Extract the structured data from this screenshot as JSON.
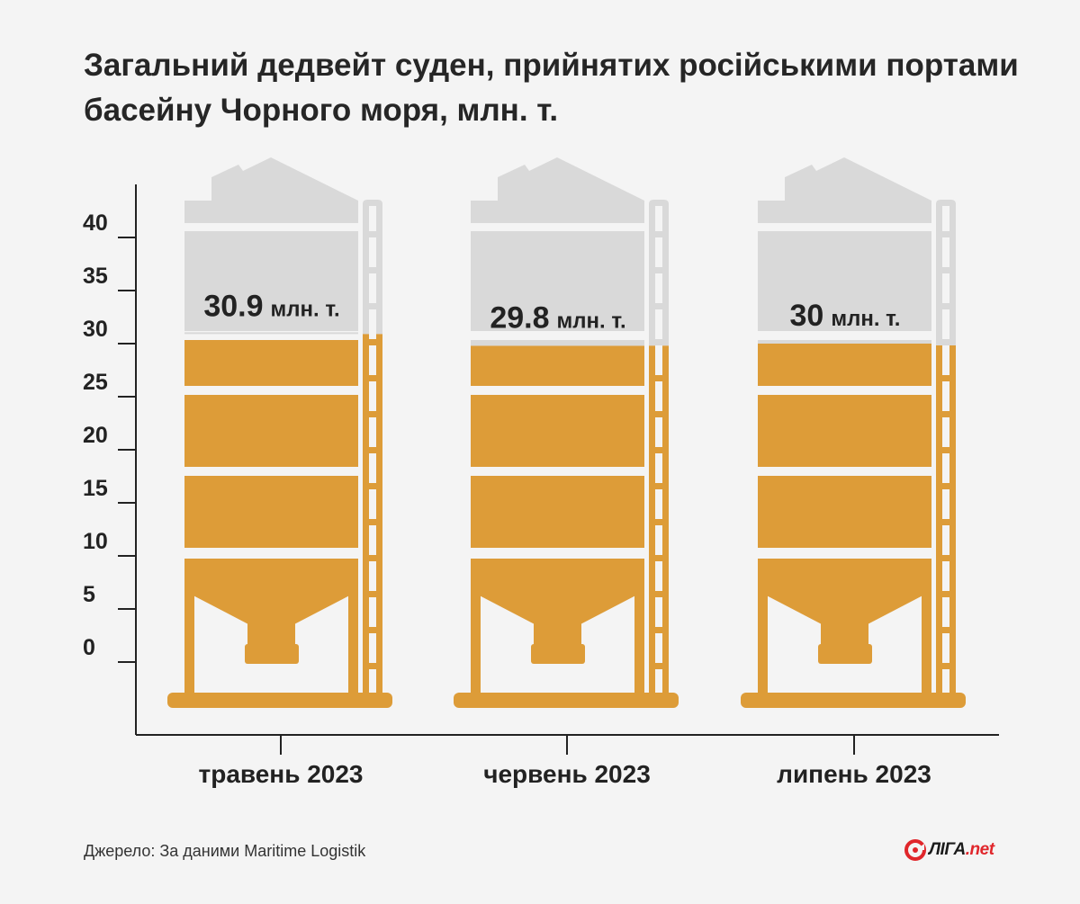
{
  "title_lines": [
    "Загальний дедвейт суден, прийнятих російськими портами",
    "басейну Чорного моря, млн. т."
  ],
  "source": "Джерело: За даними Maritime Logistik",
  "logo": {
    "main": "ЛІГА",
    "domain": ".net"
  },
  "colors": {
    "fill": "#dd9c38",
    "empty": "#d9d9d9",
    "axis": "#222222",
    "background": "#f4f4f4"
  },
  "chart_data": {
    "type": "bar",
    "title": "Загальний дедвейт суден, прийнятих російськими портами басейну Чорного моря, млн. т.",
    "categories": [
      "травень 2023",
      "червень 2023",
      "липень 2023"
    ],
    "values": [
      30.9,
      29.8,
      30
    ],
    "value_labels": [
      {
        "number": "30.9",
        "unit": "млн. т."
      },
      {
        "number": "29.8",
        "unit": "млн. т."
      },
      {
        "number": "30",
        "unit": "млн. т."
      }
    ],
    "yticks": [
      0,
      5,
      10,
      15,
      20,
      25,
      30,
      35,
      40
    ],
    "ylim": [
      0,
      40
    ],
    "xlabel": "",
    "ylabel": "",
    "grid": false,
    "legend": "none"
  }
}
